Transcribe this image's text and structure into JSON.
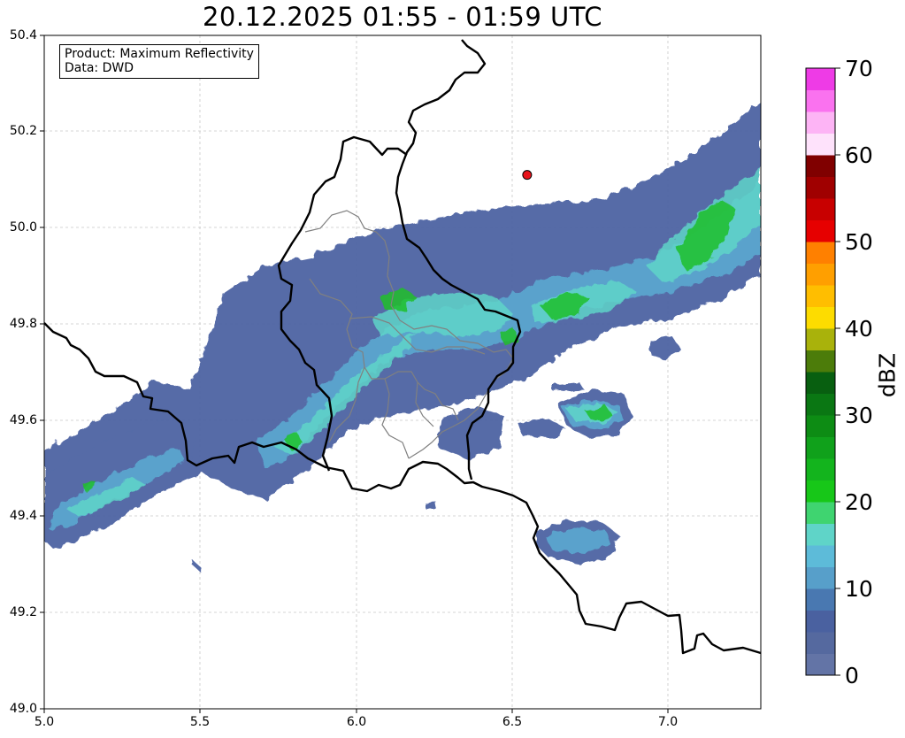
{
  "title": "20.12.2025 01:55 - 01:59 UTC",
  "info": {
    "product": "Product: Maximum Reflectivity",
    "data": "Data: DWD"
  },
  "map": {
    "x_ticks": [
      "5.0",
      "5.5",
      "6.0",
      "6.5",
      "7.0"
    ],
    "y_ticks": [
      "50.4",
      "50.2",
      "50.0",
      "49.8",
      "49.6",
      "49.4",
      "49.2",
      "49.0"
    ],
    "lon_range": [
      5.0,
      7.3
    ],
    "lat_range": [
      49.0,
      50.4
    ],
    "marker": {
      "lon": 6.55,
      "lat": 50.11,
      "color": "#e8141c"
    }
  },
  "colorbar": {
    "label": "dBZ",
    "ticks": [
      "70",
      "60",
      "50",
      "40",
      "30",
      "20",
      "10",
      "0"
    ],
    "levels": [
      {
        "min": 0,
        "color": "#6374a6"
      },
      {
        "min": 2.5,
        "color": "#55699f"
      },
      {
        "min": 5,
        "color": "#4a61a0"
      },
      {
        "min": 7.5,
        "color": "#4978b1"
      },
      {
        "min": 10,
        "color": "#579fca"
      },
      {
        "min": 12.5,
        "color": "#5dbbd9"
      },
      {
        "min": 15,
        "color": "#5fd4c8"
      },
      {
        "min": 17.5,
        "color": "#3fd470"
      },
      {
        "min": 20,
        "color": "#17c718"
      },
      {
        "min": 22.5,
        "color": "#13b41d"
      },
      {
        "min": 25,
        "color": "#10a11b"
      },
      {
        "min": 27.5,
        "color": "#0d8c14"
      },
      {
        "min": 30,
        "color": "#0a7713"
      },
      {
        "min": 32.5,
        "color": "#085f10"
      },
      {
        "min": 35,
        "color": "#4c7c0a"
      },
      {
        "min": 37.5,
        "color": "#a9b20b"
      },
      {
        "min": 40,
        "color": "#fddc00"
      },
      {
        "min": 42.5,
        "color": "#ffbe00"
      },
      {
        "min": 45,
        "color": "#ff9f00"
      },
      {
        "min": 47.5,
        "color": "#ff8000"
      },
      {
        "min": 50,
        "color": "#e60000"
      },
      {
        "min": 52.5,
        "color": "#c80000"
      },
      {
        "min": 55,
        "color": "#a00000"
      },
      {
        "min": 57.5,
        "color": "#800000"
      },
      {
        "min": 60,
        "color": "#fee2fb"
      },
      {
        "min": 62.5,
        "color": "#fdb4f5"
      },
      {
        "min": 65,
        "color": "#fa72ef"
      },
      {
        "min": 67.5,
        "color": "#ee3be6"
      }
    ]
  }
}
